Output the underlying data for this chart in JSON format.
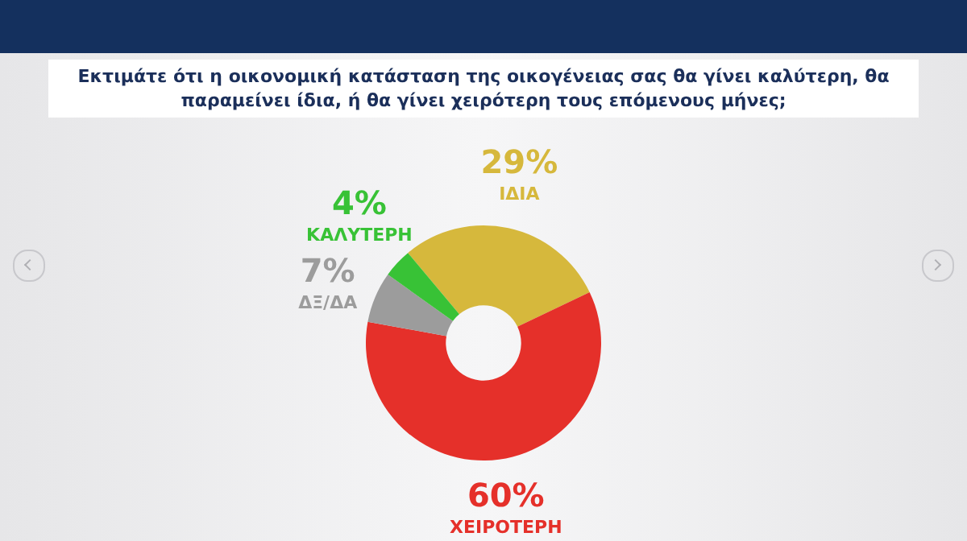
{
  "chart_data": {
    "type": "donut",
    "title": "Εκτιμάτε ότι η οικονομική κατάσταση της οικογένειας σας θα γίνει καλύτερη, θα παραμείνει ίδια, ή θα γίνει χειρότερη τους επόμενους μήνες;",
    "categories": [
      "ΙΔΙΑ",
      "ΧΕΙΡΟΤΕΡΗ",
      "ΔΞ/ΔΑ",
      "ΚΑΛΥΤΕΡΗ"
    ],
    "values": [
      29,
      60,
      7,
      4
    ],
    "colors": [
      "#d6b83c",
      "#e5302a",
      "#9c9c9c",
      "#38c236"
    ],
    "value_labels": [
      "29%",
      "60%",
      "7%",
      "4%"
    ],
    "legend": false
  }
}
